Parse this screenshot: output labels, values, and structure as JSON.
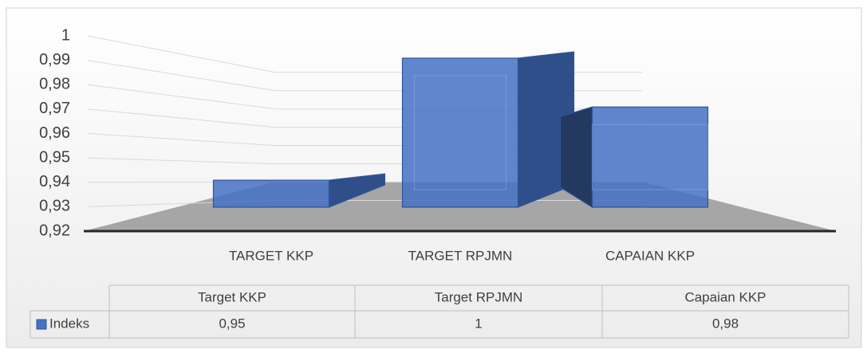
{
  "chart_data": {
    "type": "bar",
    "categories": [
      "TARGET KKP",
      "TARGET RPJMN",
      "CAPAIAN KKP"
    ],
    "series": [
      {
        "name": "Indeks",
        "color": "#4472c4",
        "values": [
          0.95,
          1,
          0.98
        ],
        "value_labels": [
          "0,95",
          "1",
          "0,98"
        ]
      }
    ],
    "table_categories": [
      "Target KKP",
      "Target RPJMN",
      "Capaian KKP"
    ],
    "ylim": [
      0.92,
      1
    ],
    "yticks": [
      {
        "value": 0.92,
        "label": "0,92"
      },
      {
        "value": 0.93,
        "label": "0,93"
      },
      {
        "value": 0.94,
        "label": "0,94"
      },
      {
        "value": 0.95,
        "label": "0,95"
      },
      {
        "value": 0.96,
        "label": "0,96"
      },
      {
        "value": 0.97,
        "label": "0,97"
      },
      {
        "value": 0.98,
        "label": "0,98"
      },
      {
        "value": 0.99,
        "label": "0,99"
      },
      1
    ],
    "grid": true,
    "legend": "table"
  }
}
